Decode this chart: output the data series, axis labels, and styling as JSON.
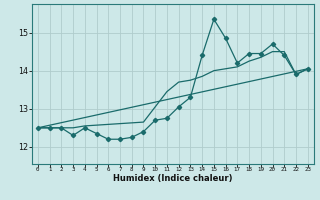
{
  "title": "",
  "xlabel": "Humidex (Indice chaleur)",
  "xlim": [
    -0.5,
    23.5
  ],
  "ylim": [
    11.55,
    15.75
  ],
  "xticks": [
    0,
    1,
    2,
    3,
    4,
    5,
    6,
    7,
    8,
    9,
    10,
    11,
    12,
    13,
    14,
    15,
    16,
    17,
    18,
    19,
    20,
    21,
    22,
    23
  ],
  "yticks": [
    12,
    13,
    14,
    15
  ],
  "bg_color": "#cde8e8",
  "grid_color": "#b0cccc",
  "line_color": "#1a6b6b",
  "series1_x": [
    0,
    1,
    2,
    3,
    4,
    5,
    6,
    7,
    8,
    9,
    10,
    11,
    12,
    13,
    14,
    15,
    16,
    17,
    18,
    19,
    20,
    21,
    22,
    23
  ],
  "series1_y": [
    12.5,
    12.5,
    12.5,
    12.3,
    12.5,
    12.35,
    12.2,
    12.2,
    12.25,
    12.4,
    12.7,
    12.75,
    13.05,
    13.3,
    14.4,
    15.35,
    14.85,
    14.2,
    14.45,
    14.45,
    14.7,
    14.4,
    13.9,
    14.05
  ],
  "series2_x": [
    0,
    23
  ],
  "series2_y": [
    12.5,
    14.05
  ],
  "series3_x": [
    0,
    3,
    4,
    9,
    10,
    11,
    12,
    13,
    14,
    15,
    16,
    17,
    18,
    19,
    20,
    21,
    22,
    23
  ],
  "series3_y": [
    12.5,
    12.5,
    12.55,
    12.65,
    13.05,
    13.45,
    13.7,
    13.75,
    13.85,
    14.0,
    14.05,
    14.1,
    14.25,
    14.35,
    14.5,
    14.5,
    13.9,
    14.05
  ]
}
